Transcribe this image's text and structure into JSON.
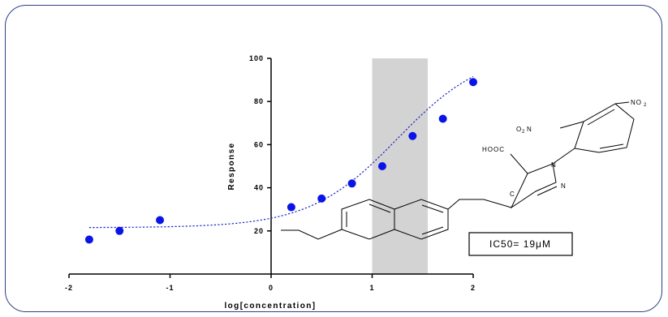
{
  "chart_data": {
    "type": "scatter",
    "title": "",
    "xlabel": "log[concentration]",
    "ylabel": "Response",
    "xlim": [
      -2,
      2
    ],
    "ylim": [
      0,
      100
    ],
    "x_ticks": [
      "-2",
      "-1",
      "0",
      "1",
      "2"
    ],
    "y_ticks": [
      "20",
      "40",
      "60",
      "80",
      "100"
    ],
    "grid": false,
    "points": [
      {
        "x": -1.8,
        "y": 16
      },
      {
        "x": -1.5,
        "y": 20
      },
      {
        "x": -1.1,
        "y": 25
      },
      {
        "x": 0.2,
        "y": 31
      },
      {
        "x": 0.5,
        "y": 35
      },
      {
        "x": 0.8,
        "y": 42
      },
      {
        "x": 1.1,
        "y": 50
      },
      {
        "x": 1.4,
        "y": 64
      },
      {
        "x": 1.7,
        "y": 72
      },
      {
        "x": 2.0,
        "y": 89
      }
    ],
    "fit_curve": {
      "style": "dotted",
      "bottom": 21.5,
      "top": 104,
      "logIC50": 1.25,
      "hill": 1
    },
    "shaded_band": {
      "x_start": 1.0,
      "x_end": 1.55
    },
    "annotation": "IC50= 19μM",
    "structure_labels": {
      "no2_top": "NO",
      "no2_top_sub": "2",
      "o2n": "O",
      "o2n_sub": "2",
      "o2n_tail": "N",
      "hooc": "HOOC",
      "n1": "N",
      "n2": "N",
      "c": "C"
    },
    "colors": {
      "points": "#0a14e8",
      "curve": "#1a22c8",
      "band": "#d3d3d3",
      "frame": "#2e3f86"
    }
  }
}
